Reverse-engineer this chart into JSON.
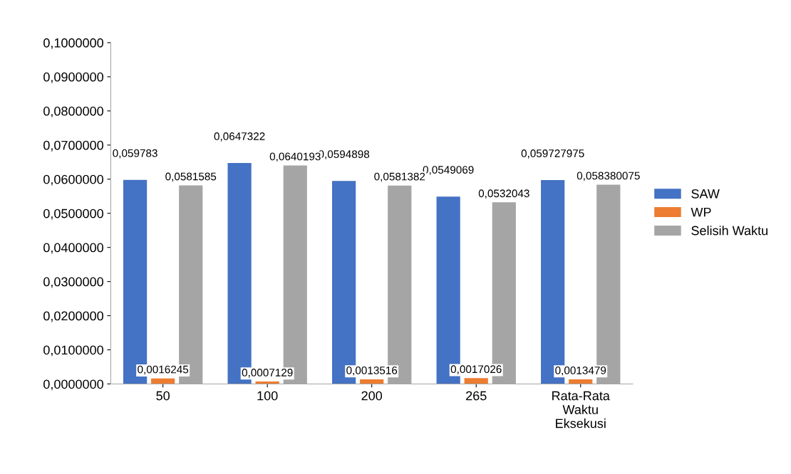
{
  "chart_data": {
    "type": "bar",
    "categories": [
      "50",
      "100",
      "200",
      "265",
      "Rata-Rata\nWaktu\nEksekusi"
    ],
    "series": [
      {
        "name": "SAW",
        "color": "#4472c4",
        "values": [
          0.059783,
          0.0647322,
          0.0594898,
          0.0549069,
          0.059727975
        ],
        "value_labels": [
          "0,059783",
          "0,0647322",
          "0,0594898",
          "0,0549069",
          "0,059727975"
        ]
      },
      {
        "name": "WP",
        "color": "#ed7d31",
        "values": [
          0.0016245,
          0.0007129,
          0.0013516,
          0.0017026,
          0.0013479
        ],
        "value_labels": [
          "0,0016245",
          "0,0007129",
          "0,0013516",
          "0,0017026",
          "0,0013479"
        ]
      },
      {
        "name": "Selisih Waktu",
        "color": "#a5a5a5",
        "values": [
          0.0581585,
          0.0640193,
          0.0581382,
          0.0532043,
          0.058380075
        ],
        "value_labels": [
          "0,0581585",
          "0,0640193",
          "0,0581382",
          "0,0532043",
          "0,058380075"
        ]
      }
    ],
    "ylim": [
      0,
      0.1
    ],
    "yticks": [
      {
        "value": 0,
        "label": "0,0000000"
      },
      {
        "value": 0.01,
        "label": "0,0100000"
      },
      {
        "value": 0.02,
        "label": "0,0200000"
      },
      {
        "value": 0.03,
        "label": "0,0300000"
      },
      {
        "value": 0.04,
        "label": "0,0400000"
      },
      {
        "value": 0.05,
        "label": "0,0500000"
      },
      {
        "value": 0.06,
        "label": "0,0600000"
      },
      {
        "value": 0.07,
        "label": "0,0700000"
      },
      {
        "value": 0.08,
        "label": "0,0800000"
      },
      {
        "value": 0.09,
        "label": "0,0900000"
      },
      {
        "value": 0.1,
        "label": "0,1000000"
      }
    ],
    "grid": false,
    "legend": "right"
  }
}
